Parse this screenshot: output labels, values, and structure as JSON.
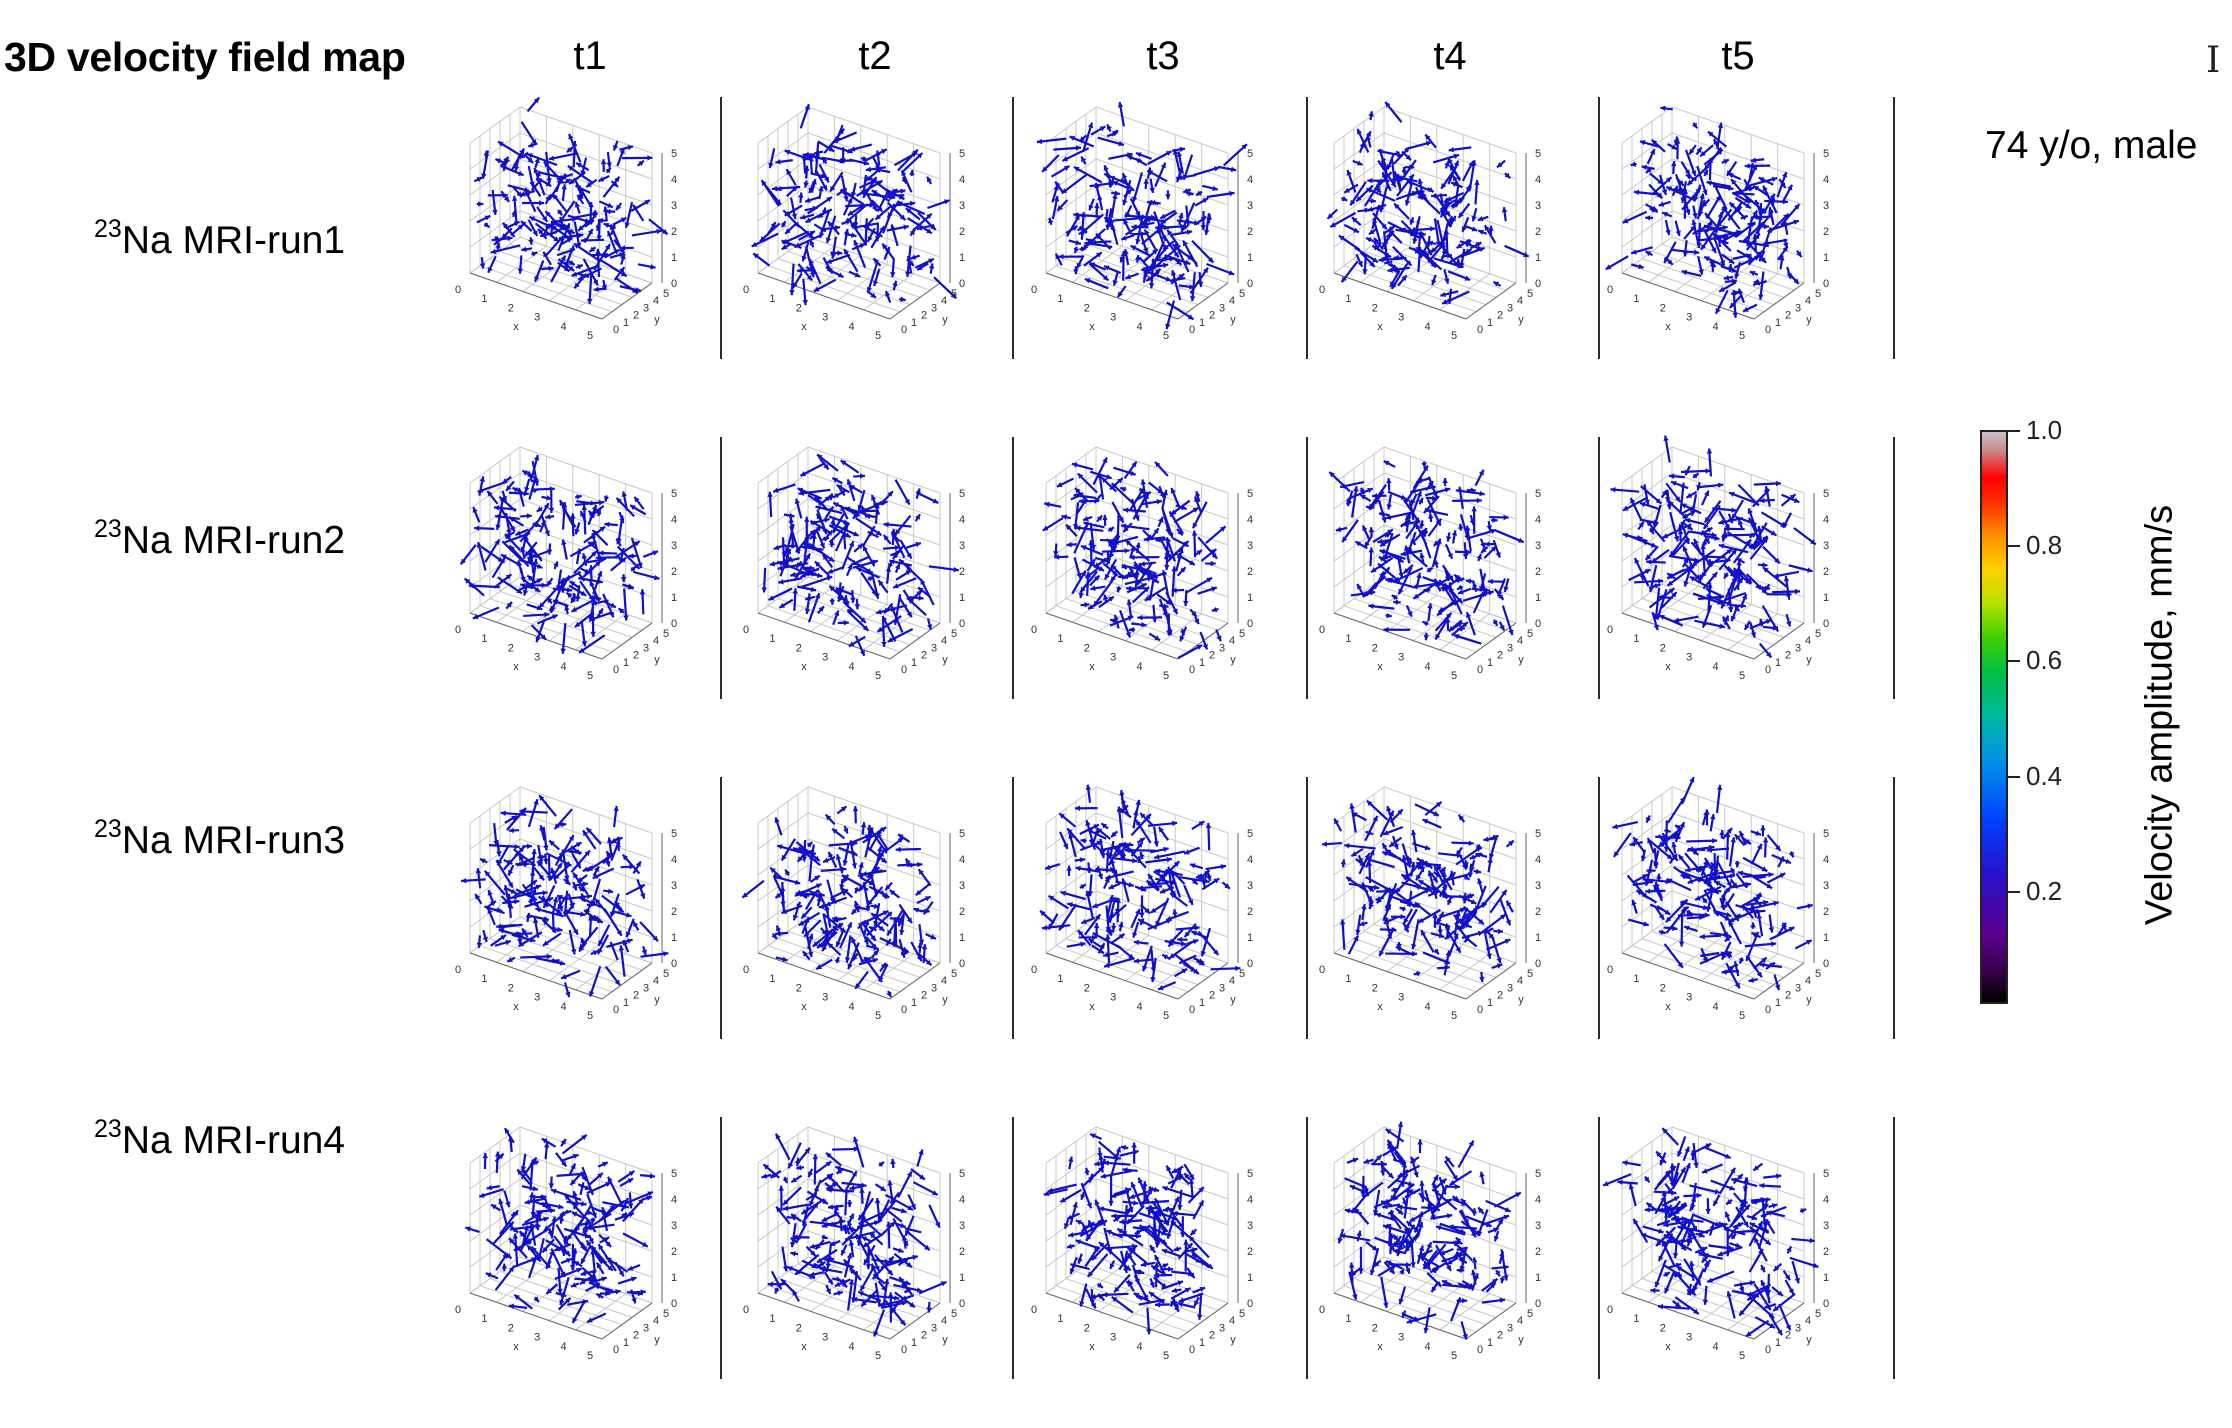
{
  "title": "3D velocity field map",
  "columns": [
    "t1",
    "t2",
    "t3",
    "t4",
    "t5"
  ],
  "rows": [
    {
      "superscript": "23",
      "label": "Na MRI-run1"
    },
    {
      "superscript": "23",
      "label": "Na MRI-run2"
    },
    {
      "superscript": "23",
      "label": "Na MRI-run3"
    },
    {
      "superscript": "23",
      "label": "Na MRI-run4"
    }
  ],
  "subject": "74 y/o, male",
  "cursor_glyph": "I",
  "colorbar": {
    "label": "Velocity amplitude, mm/s",
    "range": [
      0.0,
      1.0
    ],
    "ticks": [
      "1.0",
      "0.8",
      "0.6",
      "0.4",
      "0.2"
    ],
    "tick_values": [
      1.0,
      0.8,
      0.6,
      0.4,
      0.2
    ],
    "colormap": "nipy_spectral"
  },
  "panel_axes": {
    "x_label": "x",
    "y_label": "y",
    "x_ticks": [
      "0",
      "1",
      "2",
      "3",
      "4",
      "5"
    ],
    "y_ticks": [
      "0",
      "1",
      "2",
      "3",
      "4",
      "5"
    ],
    "z_ticks": [
      "0",
      "1",
      "2",
      "3",
      "4",
      "5"
    ],
    "range": [
      0,
      5
    ]
  },
  "arrow_color": "#1010cc",
  "grid_color": "#c8c8c8"
}
